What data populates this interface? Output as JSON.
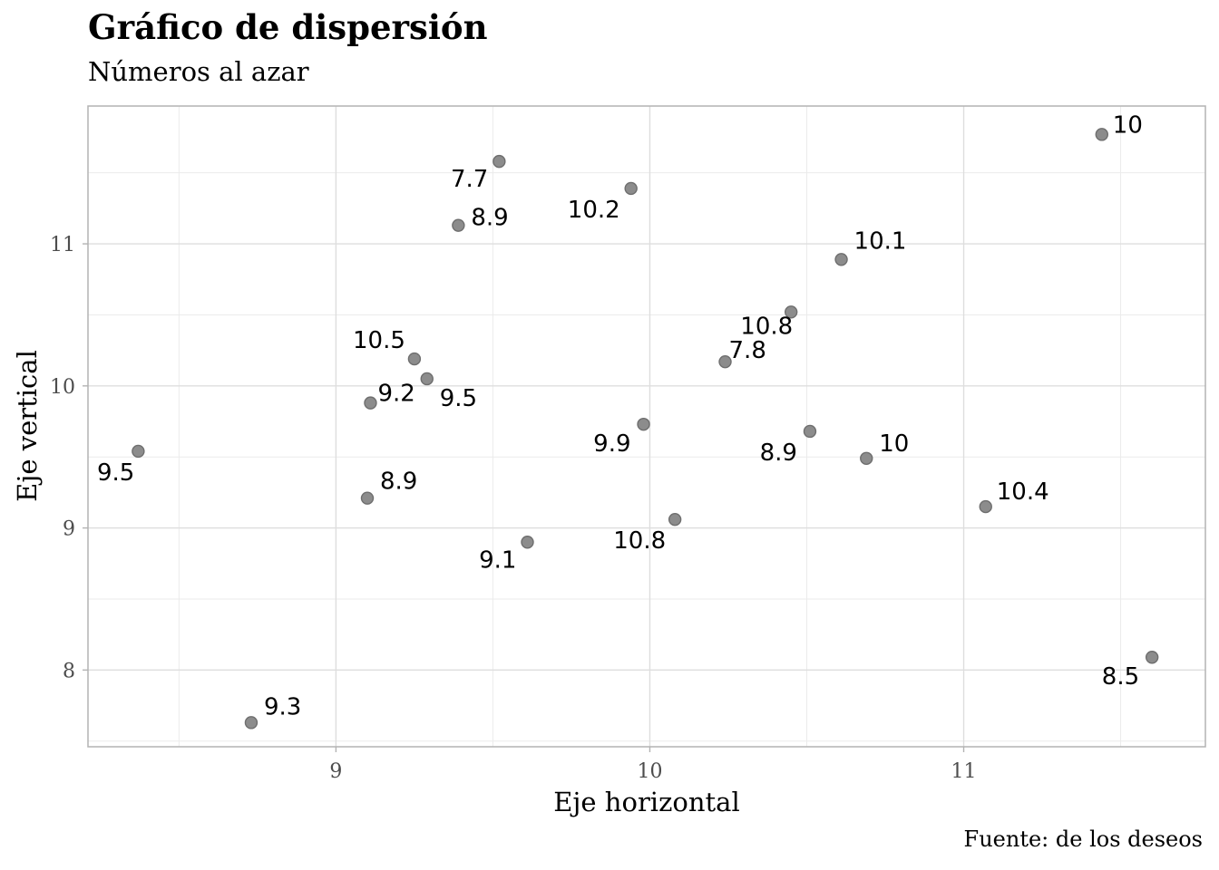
{
  "chart_data": {
    "type": "scatter",
    "title": "Gráfico de dispersión",
    "subtitle": "Números al azar",
    "caption": "Fuente: de los deseos",
    "xlabel": "Eje horizontal",
    "ylabel": "Eje vertical",
    "xlim": [
      8.21,
      11.77
    ],
    "ylim": [
      7.46,
      11.97
    ],
    "x_ticks": [
      9,
      10,
      11
    ],
    "y_ticks": [
      8,
      9,
      10,
      11
    ],
    "grid": true,
    "point_color": "#8c8c8c",
    "points": [
      {
        "x": 11.44,
        "y": 11.77,
        "label": "10"
      },
      {
        "x": 9.52,
        "y": 11.58,
        "label": "7.7"
      },
      {
        "x": 9.94,
        "y": 11.39,
        "label": "10.2"
      },
      {
        "x": 9.39,
        "y": 11.13,
        "label": "8.9"
      },
      {
        "x": 10.61,
        "y": 10.89,
        "label": "10.1"
      },
      {
        "x": 10.45,
        "y": 10.52,
        "label": "10.8"
      },
      {
        "x": 9.25,
        "y": 10.19,
        "label": "10.5"
      },
      {
        "x": 10.24,
        "y": 10.17,
        "label": "7.8"
      },
      {
        "x": 9.29,
        "y": 10.05,
        "label": "9.5"
      },
      {
        "x": 9.11,
        "y": 9.88,
        "label": "9.2"
      },
      {
        "x": 9.98,
        "y": 9.73,
        "label": "9.9"
      },
      {
        "x": 10.51,
        "y": 9.68,
        "label": "8.9"
      },
      {
        "x": 8.37,
        "y": 9.54,
        "label": "9.5"
      },
      {
        "x": 10.69,
        "y": 9.49,
        "label": "10"
      },
      {
        "x": 9.1,
        "y": 9.21,
        "label": "8.9"
      },
      {
        "x": 11.07,
        "y": 9.15,
        "label": "10.4"
      },
      {
        "x": 10.08,
        "y": 9.06,
        "label": "10.8"
      },
      {
        "x": 9.61,
        "y": 8.9,
        "label": "9.1"
      },
      {
        "x": 11.6,
        "y": 8.09,
        "label": "8.5"
      },
      {
        "x": 8.73,
        "y": 7.63,
        "label": "9.3"
      }
    ]
  }
}
